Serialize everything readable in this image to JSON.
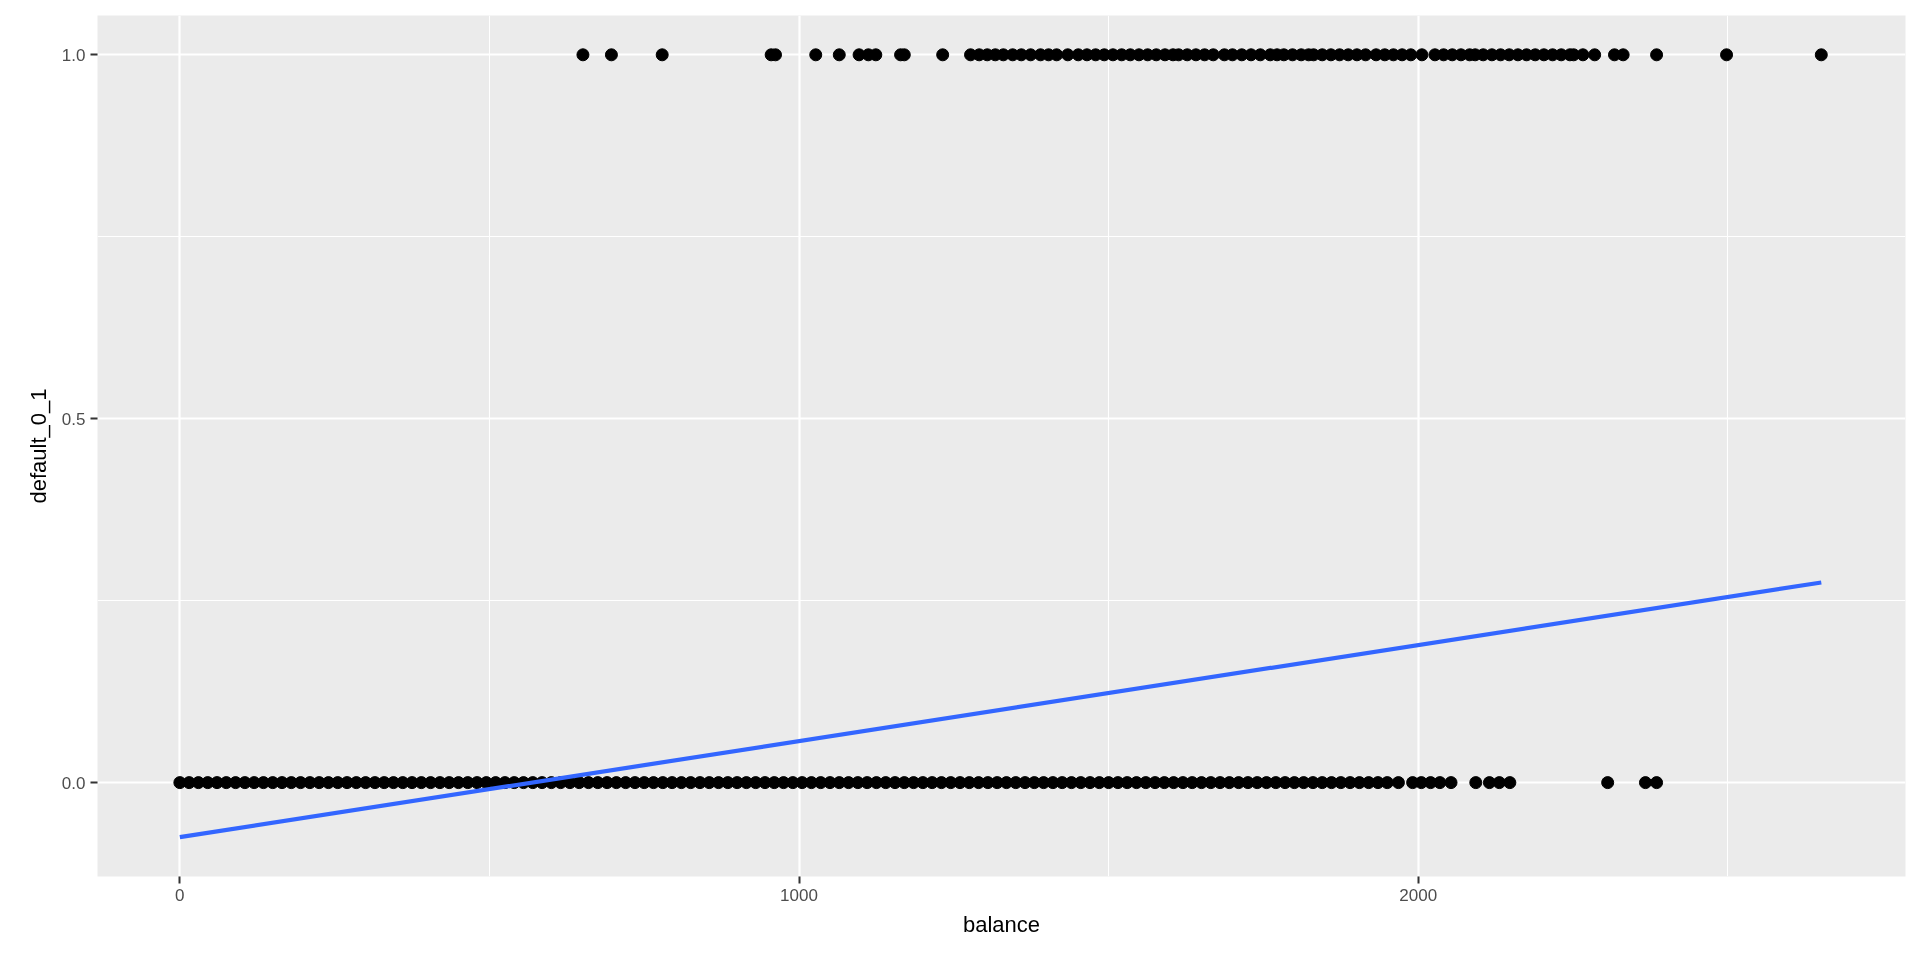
{
  "chart_data": {
    "type": "scatter",
    "xlabel": "balance",
    "ylabel": "default_0_1",
    "xlim": [
      -133,
      2787
    ],
    "ylim": [
      -0.129,
      1.054
    ],
    "xticks": [
      0,
      1000,
      2000
    ],
    "yticks": [
      {
        "value": 0,
        "label": "0.0"
      },
      {
        "value": 0.5,
        "label": "0.5"
      },
      {
        "value": 1,
        "label": "1.0"
      }
    ],
    "grid": true,
    "marker": "circle",
    "series": [
      {
        "color": "#000000",
        "x": [
          0,
          15,
          30,
          45,
          60,
          75,
          90,
          105,
          120,
          135,
          150,
          165,
          180,
          195,
          210,
          225,
          240,
          255,
          270,
          285,
          300,
          315,
          330,
          345,
          360,
          375,
          390,
          405,
          420,
          435,
          450,
          465,
          480,
          495,
          510,
          525,
          540,
          555,
          570,
          585,
          600,
          615,
          630,
          645,
          660,
          675,
          690,
          705,
          720,
          735,
          750,
          765,
          780,
          795,
          810,
          825,
          840,
          855,
          870,
          885,
          900,
          915,
          930,
          945,
          960,
          975,
          990,
          1005,
          1020,
          1035,
          1050,
          1065,
          1080,
          1095,
          1110,
          1125,
          1140,
          1155,
          1170,
          1185,
          1200,
          1215,
          1230,
          1245,
          1260,
          1275,
          1290,
          1305,
          1320,
          1335,
          1350,
          1365,
          1380,
          1395,
          1410,
          1425,
          1440,
          1455,
          1470,
          1485,
          1500,
          1515,
          1530,
          1545,
          1560,
          1575,
          1590,
          1605,
          1620,
          1635,
          1650,
          1665,
          1680,
          1695,
          1710,
          1725,
          1740,
          1755,
          1770,
          1785,
          1800,
          1815,
          1830,
          1845,
          1860,
          1875,
          1890,
          1905,
          1920,
          1935,
          1950,
          1968,
          1991,
          2005,
          2020,
          2035,
          2053,
          2093,
          2115,
          2131,
          2148,
          2306,
          2367,
          2385
        ],
        "values": [
          0,
          0,
          0,
          0,
          0,
          0,
          0,
          0,
          0,
          0,
          0,
          0,
          0,
          0,
          0,
          0,
          0,
          0,
          0,
          0,
          0,
          0,
          0,
          0,
          0,
          0,
          0,
          0,
          0,
          0,
          0,
          0,
          0,
          0,
          0,
          0,
          0,
          0,
          0,
          0,
          0,
          0,
          0,
          0,
          0,
          0,
          0,
          0,
          0,
          0,
          0,
          0,
          0,
          0,
          0,
          0,
          0,
          0,
          0,
          0,
          0,
          0,
          0,
          0,
          0,
          0,
          0,
          0,
          0,
          0,
          0,
          0,
          0,
          0,
          0,
          0,
          0,
          0,
          0,
          0,
          0,
          0,
          0,
          0,
          0,
          0,
          0,
          0,
          0,
          0,
          0,
          0,
          0,
          0,
          0,
          0,
          0,
          0,
          0,
          0,
          0,
          0,
          0,
          0,
          0,
          0,
          0,
          0,
          0,
          0,
          0,
          0,
          0,
          0,
          0,
          0,
          0,
          0,
          0,
          0,
          0,
          0,
          0,
          0,
          0,
          0,
          0,
          0,
          0,
          0,
          0,
          0,
          0,
          0,
          0,
          0,
          0,
          0,
          0,
          0,
          0,
          0,
          0,
          0
        ]
      },
      {
        "color": "#000000",
        "x": [
          651,
          697,
          779,
          955,
          962,
          1027,
          1065,
          1097,
          1112,
          1124,
          1164,
          1170,
          1232,
          1277,
          1291,
          1304,
          1317,
          1330,
          1345,
          1359,
          1374,
          1390,
          1403,
          1416,
          1434,
          1451,
          1465,
          1479,
          1493,
          1507,
          1521,
          1535,
          1549,
          1563,
          1577,
          1591,
          1604,
          1613,
          1627,
          1641,
          1655,
          1669,
          1687,
          1700,
          1715,
          1730,
          1745,
          1761,
          1772,
          1783,
          1797,
          1811,
          1823,
          1831,
          1845,
          1859,
          1873,
          1887,
          1901,
          1915,
          1932,
          1946,
          1960,
          1974,
          1988,
          2006,
          2027,
          2041,
          2055,
          2069,
          2083,
          2092,
          2105,
          2119,
          2133,
          2147,
          2161,
          2175,
          2189,
          2203,
          2217,
          2231,
          2245,
          2251,
          2266,
          2285,
          2317,
          2331,
          2385,
          2498,
          2651
        ],
        "values": [
          1,
          1,
          1,
          1,
          1,
          1,
          1,
          1,
          1,
          1,
          1,
          1,
          1,
          1,
          1,
          1,
          1,
          1,
          1,
          1,
          1,
          1,
          1,
          1,
          1,
          1,
          1,
          1,
          1,
          1,
          1,
          1,
          1,
          1,
          1,
          1,
          1,
          1,
          1,
          1,
          1,
          1,
          1,
          1,
          1,
          1,
          1,
          1,
          1,
          1,
          1,
          1,
          1,
          1,
          1,
          1,
          1,
          1,
          1,
          1,
          1,
          1,
          1,
          1,
          1,
          1,
          1,
          1,
          1,
          1,
          1,
          1,
          1,
          1,
          1,
          1,
          1,
          1,
          1,
          1,
          1,
          1,
          1,
          1,
          1,
          1,
          1,
          1,
          1,
          1,
          1
        ]
      },
      {
        "type": "line",
        "marker": "none",
        "color": "#3366ff",
        "x": [
          0,
          2651
        ],
        "values": [
          -0.075,
          0.275
        ]
      }
    ]
  }
}
